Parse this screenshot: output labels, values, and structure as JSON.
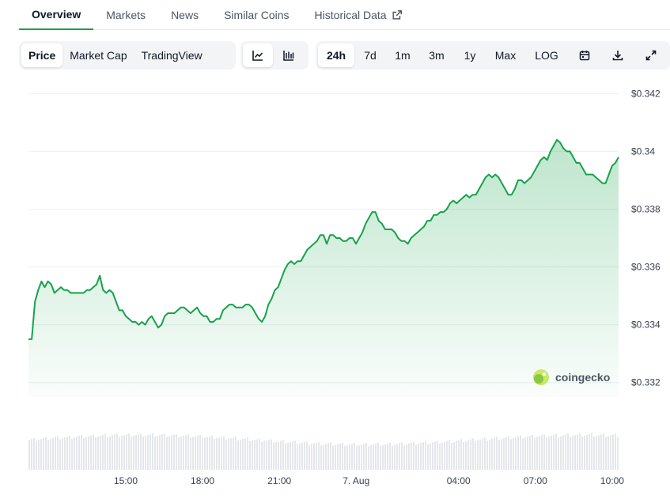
{
  "tabs": [
    {
      "label": "Overview"
    },
    {
      "label": "Markets"
    },
    {
      "label": "News"
    },
    {
      "label": "Similar Coins"
    },
    {
      "label": "Historical Data"
    }
  ],
  "toolbar": {
    "view_buttons": [
      "Price",
      "Market Cap",
      "TradingView"
    ],
    "chart_type_icons": [
      "line-chart-icon",
      "candlestick-icon"
    ],
    "ranges": [
      "24h",
      "7d",
      "1m",
      "3m",
      "1y",
      "Max",
      "LOG"
    ],
    "action_icons": [
      "calendar-icon",
      "download-icon",
      "fullscreen-icon"
    ],
    "selected_view": "Price",
    "selected_range": "24h"
  },
  "watermark": "coingecko",
  "colors": {
    "line": "#16a34a",
    "accent": "#16a34a"
  },
  "chart_data": {
    "type": "area",
    "title": "",
    "xlabel": "",
    "ylabel": "",
    "ylim": [
      0.3315,
      0.3425
    ],
    "yticks": [
      "$0.342",
      "$0.34",
      "$0.338",
      "$0.336",
      "$0.334",
      "$0.332"
    ],
    "ytick_values": [
      0.342,
      0.34,
      0.338,
      0.336,
      0.334,
      0.332
    ],
    "x_start_hours": 11.2,
    "x_end_hours": 34.25,
    "xticks": [
      "15:00",
      "18:00",
      "21:00",
      "7. Aug",
      "04:00",
      "07:00",
      "10:00"
    ],
    "xtick_hours": [
      15,
      18,
      21,
      24,
      28,
      31,
      34
    ],
    "grid": true,
    "legend": "none",
    "series": [
      {
        "values": [
          0.3335,
          0.3335,
          0.3348,
          0.3352,
          0.3355,
          0.3353,
          0.3355,
          0.3354,
          0.3351,
          0.3352,
          0.3353,
          0.3352,
          0.3352,
          0.3351,
          0.3351,
          0.3351,
          0.3351,
          0.3351,
          0.3352,
          0.3352,
          0.3353,
          0.3354,
          0.3357,
          0.3352,
          0.3351,
          0.3352,
          0.3351,
          0.3348,
          0.3345,
          0.3345,
          0.3343,
          0.3342,
          0.3341,
          0.3341,
          0.334,
          0.3341,
          0.334,
          0.3342,
          0.3343,
          0.3341,
          0.3339,
          0.334,
          0.3343,
          0.3344,
          0.3344,
          0.3344,
          0.3345,
          0.3346,
          0.3346,
          0.3345,
          0.3344,
          0.3345,
          0.3346,
          0.3344,
          0.3343,
          0.3343,
          0.3341,
          0.3341,
          0.3342,
          0.3342,
          0.3345,
          0.3346,
          0.3347,
          0.3347,
          0.3346,
          0.3346,
          0.3346,
          0.3347,
          0.3347,
          0.3346,
          0.3344,
          0.3342,
          0.3341,
          0.3343,
          0.3347,
          0.3349,
          0.3352,
          0.3353,
          0.3356,
          0.3359,
          0.3361,
          0.3362,
          0.3361,
          0.3362,
          0.3362,
          0.3364,
          0.3366,
          0.3367,
          0.3368,
          0.3369,
          0.3371,
          0.3371,
          0.3368,
          0.3371,
          0.3371,
          0.337,
          0.337,
          0.3369,
          0.3369,
          0.337,
          0.337,
          0.3368,
          0.337,
          0.3372,
          0.3375,
          0.3377,
          0.3379,
          0.3379,
          0.3376,
          0.3375,
          0.3373,
          0.3373,
          0.3373,
          0.3372,
          0.337,
          0.3369,
          0.3369,
          0.3368,
          0.337,
          0.3371,
          0.3372,
          0.3373,
          0.3374,
          0.3376,
          0.3376,
          0.3378,
          0.3378,
          0.3379,
          0.3379,
          0.338,
          0.3382,
          0.3383,
          0.3382,
          0.3383,
          0.3384,
          0.3385,
          0.3384,
          0.3385,
          0.3385,
          0.3387,
          0.3389,
          0.3391,
          0.3392,
          0.3391,
          0.3392,
          0.3391,
          0.3389,
          0.3387,
          0.3385,
          0.3385,
          0.3387,
          0.339,
          0.339,
          0.3389,
          0.339,
          0.3391,
          0.3393,
          0.3395,
          0.3397,
          0.3398,
          0.3397,
          0.34,
          0.3402,
          0.3404,
          0.3403,
          0.3401,
          0.34,
          0.34,
          0.3398,
          0.3396,
          0.3396,
          0.3394,
          0.3392,
          0.3392,
          0.3392,
          0.3391,
          0.339,
          0.3389,
          0.3389,
          0.3392,
          0.3395,
          0.3396,
          0.3398
        ]
      }
    ]
  }
}
